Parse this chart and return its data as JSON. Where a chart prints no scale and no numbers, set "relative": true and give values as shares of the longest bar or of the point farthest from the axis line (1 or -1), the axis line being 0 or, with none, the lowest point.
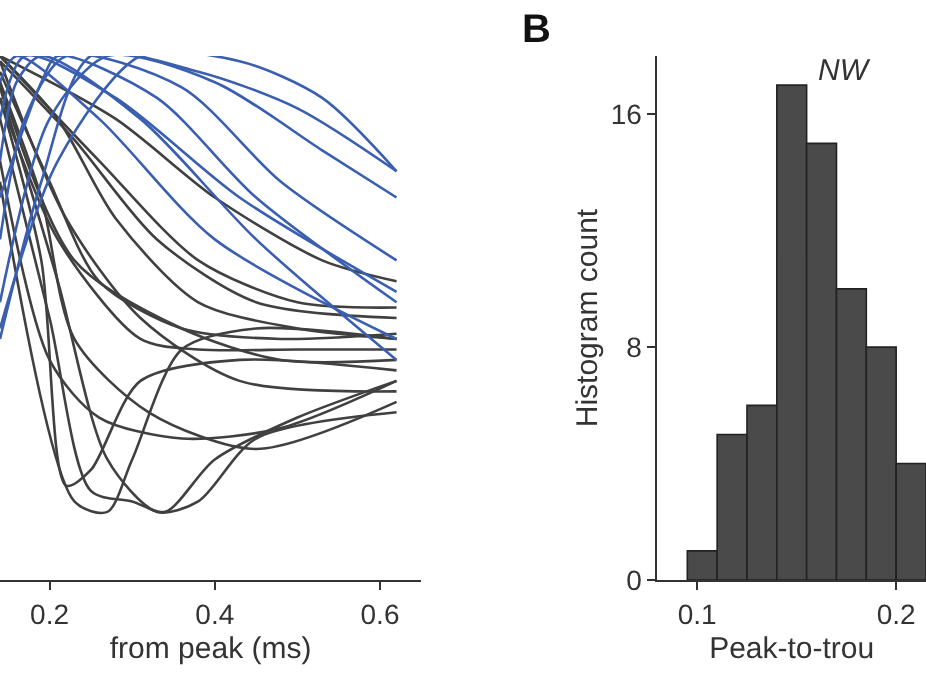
{
  "chart_data": [
    {
      "type": "line",
      "relative": true,
      "xlabel": "from peak (ms)",
      "xlim": [
        0.14,
        0.65
      ],
      "xticks": [
        {
          "value": 0.2,
          "label": "0.2"
        },
        {
          "value": 0.4,
          "label": "0.4"
        },
        {
          "value": 0.6,
          "label": "0.6"
        }
      ],
      "tick_labels": "x",
      "marker": "none",
      "line_style": "solid",
      "series": [
        {
          "color": "#404040",
          "x": [
            0.14,
            0.21,
            0.28,
            0.38,
            0.5,
            0.62
          ],
          "values": [
            1.0,
            0.88,
            0.69,
            0.53,
            0.48,
            0.46
          ]
        },
        {
          "color": "#404040",
          "x": [
            0.14,
            0.2,
            0.26,
            0.36,
            0.48,
            0.62
          ],
          "values": [
            0.97,
            0.76,
            0.57,
            0.48,
            0.46,
            0.47
          ]
        },
        {
          "color": "#404040",
          "x": [
            0.14,
            0.23,
            0.33,
            0.45,
            0.62
          ],
          "values": [
            0.99,
            0.84,
            0.65,
            0.53,
            0.5
          ]
        },
        {
          "color": "#404040",
          "x": [
            0.14,
            0.19,
            0.22,
            0.25,
            0.31,
            0.43,
            0.62
          ],
          "values": [
            0.92,
            0.61,
            0.18,
            0.21,
            0.38,
            0.42,
            0.4
          ]
        },
        {
          "color": "#404040",
          "x": [
            0.14,
            0.2,
            0.25,
            0.3,
            0.34,
            0.4,
            0.5,
            0.62
          ],
          "values": [
            0.88,
            0.5,
            0.17,
            0.15,
            0.13,
            0.23,
            0.31,
            0.38
          ]
        },
        {
          "color": "#404040",
          "x": [
            0.14,
            0.21,
            0.27,
            0.33,
            0.38,
            0.45,
            0.62
          ],
          "values": [
            0.94,
            0.57,
            0.23,
            0.13,
            0.15,
            0.27,
            0.32
          ]
        },
        {
          "color": "#404040",
          "x": [
            0.14,
            0.19,
            0.23,
            0.32,
            0.45,
            0.62
          ],
          "values": [
            0.95,
            0.73,
            0.46,
            0.32,
            0.25,
            0.34
          ]
        },
        {
          "color": "#404040",
          "x": [
            0.14,
            0.22,
            0.31,
            0.43,
            0.62
          ],
          "values": [
            0.99,
            0.69,
            0.5,
            0.38,
            0.36
          ]
        },
        {
          "color": "#404040",
          "x": [
            0.14,
            0.2,
            0.26,
            0.36,
            0.48,
            0.62
          ],
          "values": [
            0.8,
            0.42,
            0.31,
            0.27,
            0.29,
            0.38
          ]
        },
        {
          "color": "#404040",
          "x": [
            0.14,
            0.23,
            0.27,
            0.3,
            0.36,
            0.45,
            0.62
          ],
          "values": [
            0.76,
            0.15,
            0.13,
            0.23,
            0.44,
            0.48,
            0.46
          ]
        },
        {
          "color": "#404040",
          "x": [
            0.14,
            0.26,
            0.38,
            0.5,
            0.62
          ],
          "values": [
            1.0,
            0.8,
            0.61,
            0.53,
            0.52
          ]
        },
        {
          "color": "#404040",
          "x": [
            0.14,
            0.21,
            0.31,
            0.38,
            0.5,
            0.62
          ],
          "values": [
            0.92,
            0.65,
            0.46,
            0.44,
            0.44,
            0.44
          ]
        },
        {
          "color": "#404040",
          "x": [
            0.14,
            0.28,
            0.4,
            0.53,
            0.62
          ],
          "values": [
            1.0,
            0.88,
            0.73,
            0.61,
            0.57
          ]
        },
        {
          "color": "#404040",
          "x": [
            0.14,
            0.23,
            0.36,
            0.48,
            0.62
          ],
          "values": [
            0.95,
            0.61,
            0.48,
            0.42,
            0.42
          ]
        },
        {
          "color": "#3a5fb0",
          "x": [
            0.14,
            0.19,
            0.25,
            0.38,
            0.5,
            0.62
          ],
          "values": [
            0.46,
            0.76,
            1.0,
            0.97,
            0.9,
            0.78
          ]
        },
        {
          "color": "#3a5fb0",
          "x": [
            0.14,
            0.2,
            0.27,
            0.4,
            0.53,
            0.62
          ],
          "values": [
            0.53,
            0.88,
            1.0,
            0.95,
            0.82,
            0.73
          ]
        },
        {
          "color": "#3a5fb0",
          "x": [
            0.14,
            0.17,
            0.22,
            0.36,
            0.48,
            0.62
          ],
          "values": [
            0.65,
            0.88,
            1.0,
            0.94,
            0.76,
            0.61
          ]
        },
        {
          "color": "#3a5fb0",
          "x": [
            0.14,
            0.19,
            0.21,
            0.33,
            0.45,
            0.62
          ],
          "values": [
            0.73,
            0.95,
            1.0,
            0.92,
            0.73,
            0.53
          ]
        },
        {
          "color": "#3a5fb0",
          "x": [
            0.14,
            0.16,
            0.19,
            0.31,
            0.45,
            0.62
          ],
          "values": [
            0.8,
            0.95,
            1.0,
            0.88,
            0.65,
            0.42
          ]
        },
        {
          "color": "#3a5fb0",
          "x": [
            0.14,
            0.17,
            0.28,
            0.43,
            0.62
          ],
          "values": [
            0.88,
            1.0,
            0.92,
            0.73,
            0.55
          ]
        },
        {
          "color": "#3a5fb0",
          "x": [
            0.14,
            0.21,
            0.31,
            0.43,
            0.53,
            0.62
          ],
          "values": [
            0.48,
            0.8,
            1.0,
            0.99,
            0.92,
            0.78
          ]
        },
        {
          "color": "#3a5fb0",
          "x": [
            0.14,
            0.16,
            0.26,
            0.4,
            0.62
          ],
          "values": [
            0.95,
            1.0,
            0.88,
            0.65,
            0.46
          ]
        }
      ]
    },
    {
      "type": "histogram",
      "title": "B",
      "xlabel": "Peak-to-trou",
      "ylabel": "Histogram count",
      "annotations": [
        "NW"
      ],
      "color": "#4a4a4a",
      "bins": [
        0.095,
        0.11,
        0.125,
        0.14,
        0.155,
        0.17,
        0.185,
        0.2,
        0.215
      ],
      "values": [
        1,
        5,
        6,
        17,
        15,
        10,
        8,
        4
      ],
      "xlim": [
        0.08,
        0.215
      ],
      "xticks": [
        0.1,
        0.2
      ],
      "ylim": [
        0,
        18
      ],
      "yticks": [
        0,
        8,
        16
      ]
    }
  ]
}
